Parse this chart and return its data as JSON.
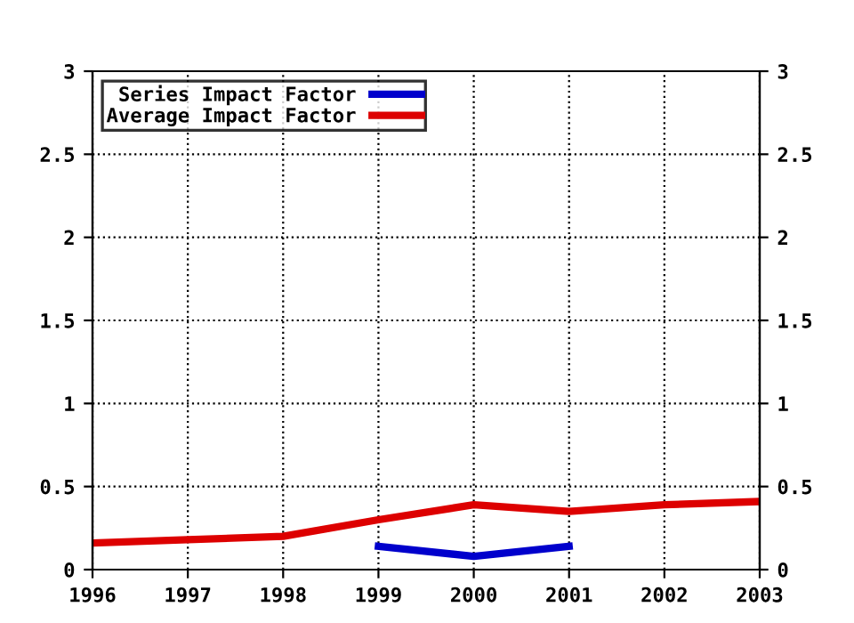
{
  "chart_data": {
    "type": "line",
    "x": [
      1996,
      1997,
      1998,
      1999,
      2000,
      2001,
      2002,
      2003
    ],
    "series": [
      {
        "name": "Series Impact Factor",
        "color": "#0000cc",
        "x": [
          1999,
          2000,
          2001
        ],
        "values": [
          0.14,
          0.08,
          0.14
        ]
      },
      {
        "name": "Average Impact Factor",
        "color": "#dd0000",
        "values": [
          0.16,
          0.18,
          0.2,
          0.3,
          0.39,
          0.35,
          0.39,
          0.41
        ]
      }
    ],
    "xlim": [
      1996,
      2003
    ],
    "xticks": [
      1996,
      1997,
      1998,
      1999,
      2000,
      2001,
      2002,
      2003
    ],
    "ylim": [
      0,
      3
    ],
    "yticks": [
      0,
      0.5,
      1,
      1.5,
      2,
      2.5,
      3
    ],
    "y2lim": [
      0,
      3
    ],
    "y2ticks": [
      0,
      0.5,
      1,
      1.5,
      2,
      2.5,
      3
    ],
    "grid": true,
    "legend": "top left",
    "marker": "none",
    "line_style": "solid"
  }
}
